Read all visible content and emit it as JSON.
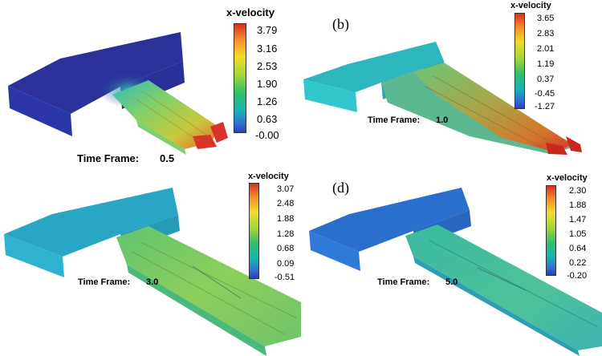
{
  "panels": [
    {
      "tag": "",
      "colorbar": {
        "title": "x-velocity",
        "ticks": [
          "3.79",
          "3.16",
          "2.53",
          "1.90",
          "1.26",
          "0.63",
          "-0.00"
        ]
      },
      "time_frame": {
        "label": "Time Frame:",
        "value": "0.5"
      },
      "block_color": "#2a2f96"
    },
    {
      "tag": "(b)",
      "colorbar": {
        "title": "x-velocity",
        "ticks": [
          "3.65",
          "2.83",
          "2.01",
          "1.19",
          "0.37",
          "-0.45",
          "-1.27"
        ]
      },
      "time_frame": {
        "label": "Time Frame:",
        "value": "1.0"
      },
      "block_color": "#29b3b8"
    },
    {
      "tag": "",
      "colorbar": {
        "title": "x-velocity",
        "ticks": [
          "3.07",
          "2.48",
          "1.88",
          "1.28",
          "0.68",
          "0.09",
          "-0.51"
        ]
      },
      "time_frame": {
        "label": "Time Frame:",
        "value": "3.0"
      },
      "block_color": "#2aa7c4"
    },
    {
      "tag": "(d)",
      "colorbar": {
        "title": "x-velocity",
        "ticks": [
          "2.30",
          "1.88",
          "1.47",
          "1.05",
          "0.64",
          "0.22",
          "-0.20"
        ]
      },
      "time_frame": {
        "label": "Time Frame:",
        "value": "5.0"
      },
      "block_color": "#2b74cc"
    }
  ]
}
